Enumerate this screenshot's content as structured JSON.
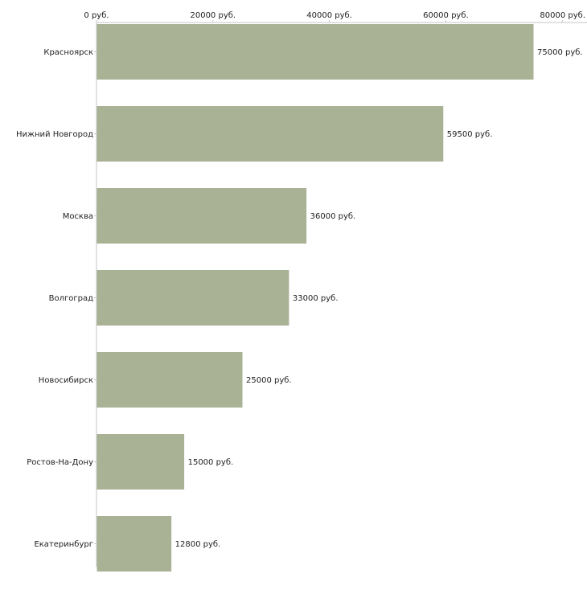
{
  "chart_data": {
    "type": "bar",
    "orientation": "horizontal",
    "categories": [
      "Красноярск",
      "Нижний Новгород",
      "Москва",
      "Волгоград",
      "Новосибирск",
      "Ростов-На-Дону",
      "Екатеринбург"
    ],
    "values": [
      75000,
      59500,
      36000,
      33000,
      25000,
      15000,
      12800
    ],
    "value_labels": [
      "75000 руб.",
      "59500 руб.",
      "36000 руб.",
      "33000 руб.",
      "25000 руб.",
      "15000 руб.",
      "12800 руб."
    ],
    "x_ticks": [
      0,
      20000,
      40000,
      60000,
      80000
    ],
    "x_tick_labels": [
      "0 руб.",
      "20000 руб.",
      "40000 руб.",
      "60000 руб.",
      "80000 руб."
    ],
    "xlim": [
      0,
      85000
    ],
    "x_axis_position": "top",
    "grid": false,
    "title": "",
    "xlabel": "",
    "ylabel": "",
    "colors": {
      "bar": "#aab296",
      "axis": "#c6c6c6",
      "text": "#222222"
    }
  }
}
